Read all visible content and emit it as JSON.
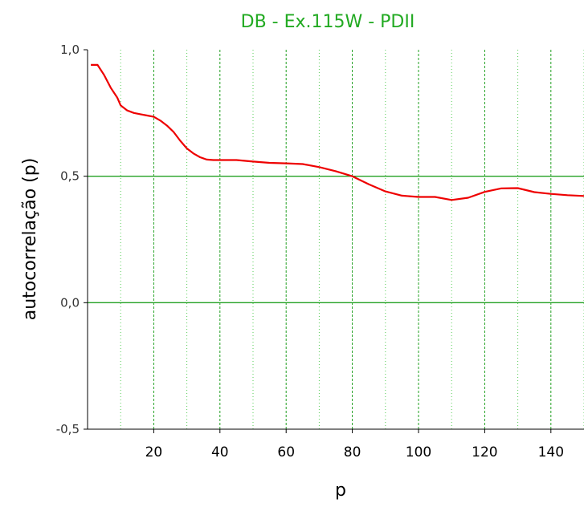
{
  "chart_data": {
    "type": "line",
    "title": "DB - Ex.115W - PDII",
    "xlabel": "p",
    "ylabel": "autocorrelação (p)",
    "xlim": [
      0,
      150
    ],
    "ylim": [
      -0.5,
      1.0
    ],
    "x_ticks": [
      20,
      40,
      60,
      80,
      100,
      120,
      140
    ],
    "x_tick_labels": [
      "20",
      "40",
      "60",
      "80",
      "100",
      "120",
      "140"
    ],
    "y_ticks": [
      -0.5,
      0.0,
      0.5,
      1.0
    ],
    "y_tick_labels": [
      "-0,5",
      "0,0",
      "0,5",
      "1,0"
    ],
    "minor_x_gridlines": [
      10,
      30,
      50,
      70,
      90,
      110,
      130,
      150
    ],
    "horizontal_reference_lines": [
      0.0,
      0.5
    ],
    "colors": {
      "title": "#22aa22",
      "series": "#ee0000",
      "grid_major": "#22a022",
      "grid_minor": "#55cc55",
      "axis": "#000000"
    },
    "series": [
      {
        "x": [
          1,
          3,
          5,
          7,
          9,
          10,
          12,
          14,
          16,
          18,
          20,
          22,
          24,
          26,
          28,
          30,
          32,
          34,
          36,
          38,
          40,
          45,
          50,
          55,
          60,
          65,
          70,
          75,
          80,
          85,
          90,
          95,
          100,
          105,
          110,
          115,
          120,
          125,
          130,
          135,
          140,
          145,
          150
        ],
        "y": [
          0.94,
          0.94,
          0.9,
          0.85,
          0.81,
          0.78,
          0.76,
          0.75,
          0.745,
          0.74,
          0.735,
          0.72,
          0.7,
          0.675,
          0.64,
          0.61,
          0.59,
          0.575,
          0.566,
          0.564,
          0.564,
          0.564,
          0.558,
          0.553,
          0.551,
          0.548,
          0.536,
          0.52,
          0.5,
          0.468,
          0.44,
          0.423,
          0.418,
          0.418,
          0.406,
          0.415,
          0.438,
          0.452,
          0.453,
          0.437,
          0.43,
          0.425,
          0.422
        ]
      }
    ]
  }
}
